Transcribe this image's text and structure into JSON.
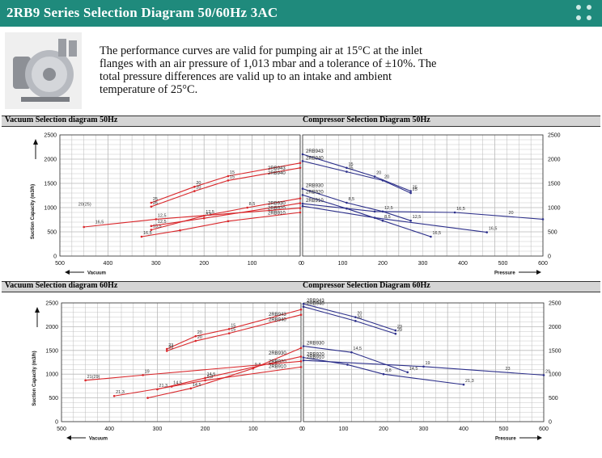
{
  "header": {
    "title": "2RB9 Series Selection Diagram 50/60Hz 3AC"
  },
  "intro": {
    "text": "The performance curves are valid for pumping air at 15°C at the inlet flanges with an air pressure of 1,013 mbar and a tolerance of ±10%. The total pressure differences are valid up to an intake and ambient temperature of 25°C."
  },
  "sections": [
    {
      "vacuum_title": "Vacuum Selection diagram 50Hz",
      "compressor_title": "Compressor Selection Diagram 50Hz"
    },
    {
      "vacuum_title": "Vacuum Selection diagram 60Hz",
      "compressor_title": "Compressor Selection Diagram 60Hz"
    }
  ],
  "colors": {
    "vacuum": "#d9262a",
    "compressor": "#2c2f8a",
    "grid": "#b9b9b9",
    "header": "#1f8a7c"
  },
  "chart_data": [
    {
      "type": "line",
      "title": "Vacuum Selection diagram 50Hz",
      "xlabel": "Vacuum",
      "ylabel": "Suction Capacity (m3/h)",
      "xlim": [
        500,
        0
      ],
      "ylim": [
        0,
        2500
      ],
      "x_ticks": [
        "500",
        "400",
        "300",
        "200",
        "100",
        "0"
      ],
      "y_ticks": [
        "0",
        "500",
        "1000",
        "1500",
        "2000",
        "2500"
      ],
      "series": [
        {
          "name": "2RB943",
          "values": [
            [
              310,
              1100
            ],
            [
              220,
              1430
            ],
            [
              150,
              1650
            ],
            [
              0,
              1920
            ]
          ],
          "labels": [
            [
              310,
              "25"
            ],
            [
              220,
              "20"
            ],
            [
              150,
              "15"
            ]
          ]
        },
        {
          "name": "2RB940",
          "values": [
            [
              310,
              1020
            ],
            [
              220,
              1340
            ],
            [
              150,
              1560
            ],
            [
              0,
              1820
            ]
          ],
          "labels": [
            [
              310,
              "25"
            ],
            [
              220,
              "20"
            ],
            [
              150,
              "15"
            ]
          ]
        },
        {
          "name": "2RB930",
          "values": [
            [
              310,
              540
            ],
            [
              200,
              830
            ],
            [
              110,
              1000
            ],
            [
              0,
              1190
            ]
          ],
          "labels": [
            [
              310,
              "15,5"
            ],
            [
              200,
              "12,5"
            ],
            [
              110,
              "8,5"
            ]
          ]
        },
        {
          "name": "2RB920",
          "values": [
            [
              310,
              620
            ],
            [
              200,
              780
            ],
            [
              0,
              1090
            ]
          ],
          "labels": [
            [
              300,
              "12,5"
            ],
            [
              200,
              "8,5"
            ]
          ]
        },
        {
          "name": "2RB910",
          "values": [
            [
              450,
              600
            ],
            [
              300,
              760
            ],
            [
              0,
              990
            ]
          ],
          "labels": [
            [
              465,
              "20(25)"
            ],
            [
              430,
              "16,5"
            ],
            [
              300,
              "12,5"
            ]
          ]
        },
        {
          "name": "",
          "values": [
            [
              330,
              400
            ],
            [
              250,
              530
            ],
            [
              150,
              720
            ],
            [
              0,
              900
            ]
          ],
          "labels": [
            [
              330,
              "16,5"
            ]
          ]
        }
      ]
    },
    {
      "type": "line",
      "title": "Compressor Selection Diagram 50Hz",
      "xlabel": "Pressure",
      "ylabel": "",
      "xlim": [
        0,
        600
      ],
      "ylim": [
        0,
        2500
      ],
      "x_ticks": [
        "0",
        "100",
        "200",
        "300",
        "400",
        "500",
        "600"
      ],
      "y_ticks": [
        "0",
        "500",
        "1000",
        "1500",
        "2000",
        "2500"
      ],
      "series": [
        {
          "name": "2RB943",
          "values": [
            [
              0,
              2100
            ],
            [
              110,
              1820
            ],
            [
              180,
              1640
            ],
            [
              270,
              1340
            ]
          ],
          "labels": [
            [
              110,
              "15"
            ],
            [
              180,
              "20"
            ],
            [
              270,
              "25"
            ]
          ]
        },
        {
          "name": "2RB940",
          "values": [
            [
              0,
              1960
            ],
            [
              110,
              1740
            ],
            [
              200,
              1560
            ],
            [
              270,
              1300
            ]
          ],
          "labels": [
            [
              110,
              "15"
            ],
            [
              200,
              "20"
            ],
            [
              270,
              "25"
            ]
          ]
        },
        {
          "name": "2RB930",
          "values": [
            [
              0,
              1390
            ],
            [
              110,
              1100
            ],
            [
              200,
              920
            ],
            [
              270,
              730
            ]
          ],
          "labels": [
            [
              110,
              "8,5"
            ],
            [
              200,
              "12,5"
            ],
            [
              270,
              "12,5"
            ]
          ]
        },
        {
          "name": "2RB920",
          "values": [
            [
              0,
              1260
            ],
            [
              110,
              980
            ],
            [
              200,
              730
            ],
            [
              320,
              400
            ]
          ],
          "labels": [
            [
              200,
              "8,5"
            ],
            [
              320,
              "16,5"
            ]
          ]
        },
        {
          "name": "2RB910",
          "values": [
            [
              0,
              1080
            ],
            [
              180,
              920
            ],
            [
              380,
              900
            ],
            [
              600,
              760
            ]
          ],
          "labels": [
            [
              380,
              "16,5"
            ],
            [
              510,
              "20"
            ]
          ]
        },
        {
          "name": "",
          "values": [
            [
              0,
              1030
            ],
            [
              180,
              790
            ],
            [
              460,
              490
            ]
          ],
          "labels": [
            [
              460,
              "16,5"
            ]
          ]
        }
      ]
    },
    {
      "type": "line",
      "title": "Vacuum Selection diagram 60Hz",
      "xlabel": "Vacuum",
      "ylabel": "Suction Capacity (m3/h)",
      "xlim": [
        500,
        0
      ],
      "ylim": [
        0,
        2500
      ],
      "x_ticks": [
        "500",
        "400",
        "300",
        "200",
        "100",
        "0"
      ],
      "y_ticks": [
        "0",
        "500",
        "1000",
        "1500",
        "2000",
        "2500"
      ],
      "series": [
        {
          "name": "2RB943",
          "values": [
            [
              280,
              1530
            ],
            [
              220,
              1800
            ],
            [
              150,
              1950
            ],
            [
              0,
              2360
            ]
          ],
          "labels": [
            [
              280,
              "23"
            ],
            [
              220,
              "20"
            ],
            [
              150,
              "15"
            ]
          ]
        },
        {
          "name": "2RB940",
          "values": [
            [
              280,
              1490
            ],
            [
              220,
              1700
            ],
            [
              150,
              1860
            ],
            [
              0,
              2250
            ]
          ],
          "labels": [
            [
              280,
              "23"
            ],
            [
              220,
              "20"
            ],
            [
              150,
              "15"
            ]
          ]
        },
        {
          "name": "2RB930",
          "values": [
            [
              320,
              500
            ],
            [
              230,
              700
            ],
            [
              100,
              1120
            ],
            [
              0,
              1550
            ]
          ],
          "labels": [
            [
              230,
              "14,5"
            ],
            [
              100,
              "9,8"
            ]
          ]
        },
        {
          "name": "2RB920",
          "values": [
            [
              300,
              680
            ],
            [
              200,
              920
            ],
            [
              0,
              1370
            ]
          ],
          "labels": [
            [
              300,
              "21,3"
            ],
            [
              200,
              "14,5"
            ]
          ]
        },
        {
          "name": "2RB910",
          "values": [
            [
              450,
              870
            ],
            [
              330,
              980
            ],
            [
              0,
              1270
            ]
          ],
          "labels": [
            [
              450,
              "21(29)"
            ],
            [
              330,
              "19"
            ]
          ]
        },
        {
          "name": "",
          "values": [
            [
              390,
              540
            ],
            [
              270,
              740
            ],
            [
              200,
              870
            ],
            [
              0,
              1150
            ]
          ],
          "labels": [
            [
              390,
              "21,3"
            ],
            [
              270,
              "14,5"
            ],
            [
              200,
              "9,8"
            ]
          ]
        }
      ]
    },
    {
      "type": "line",
      "title": "Compressor Selection Diagram 60Hz",
      "xlabel": "Pressure",
      "ylabel": "",
      "xlim": [
        0,
        600
      ],
      "ylim": [
        0,
        2500
      ],
      "x_ticks": [
        "0",
        "100",
        "200",
        "300",
        "400",
        "500",
        "600"
      ],
      "y_ticks": [
        "0",
        "500",
        "1000",
        "1500",
        "2000",
        "2500"
      ],
      "series": [
        {
          "name": "2RB943",
          "values": [
            [
              0,
              2480
            ],
            [
              130,
              2200
            ],
            [
              230,
              1920
            ]
          ],
          "labels": [
            [
              130,
              "20"
            ],
            [
              230,
              "23"
            ]
          ]
        },
        {
          "name": "2RB940",
          "values": [
            [
              0,
              2420
            ],
            [
              130,
              2120
            ],
            [
              230,
              1850
            ]
          ],
          "labels": [
            [
              130,
              "20"
            ],
            [
              230,
              "29"
            ]
          ]
        },
        {
          "name": "2RB930",
          "values": [
            [
              0,
              1590
            ],
            [
              120,
              1460
            ],
            [
              260,
              1040
            ]
          ],
          "labels": [
            [
              120,
              "14,5"
            ],
            [
              260,
              "14,5"
            ]
          ]
        },
        {
          "name": "2RB920",
          "values": [
            [
              0,
              1350
            ],
            [
              110,
              1200
            ],
            [
              200,
              1000
            ],
            [
              400,
              780
            ]
          ],
          "labels": [
            [
              200,
              "9,8"
            ],
            [
              400,
              "21,3"
            ]
          ]
        },
        {
          "name": "2RB910",
          "values": [
            [
              0,
              1290
            ],
            [
              300,
              1160
            ],
            [
              600,
              980
            ]
          ],
          "labels": [
            [
              300,
              "19"
            ],
            [
              500,
              "23"
            ],
            [
              600,
              "29"
            ]
          ]
        }
      ]
    }
  ]
}
